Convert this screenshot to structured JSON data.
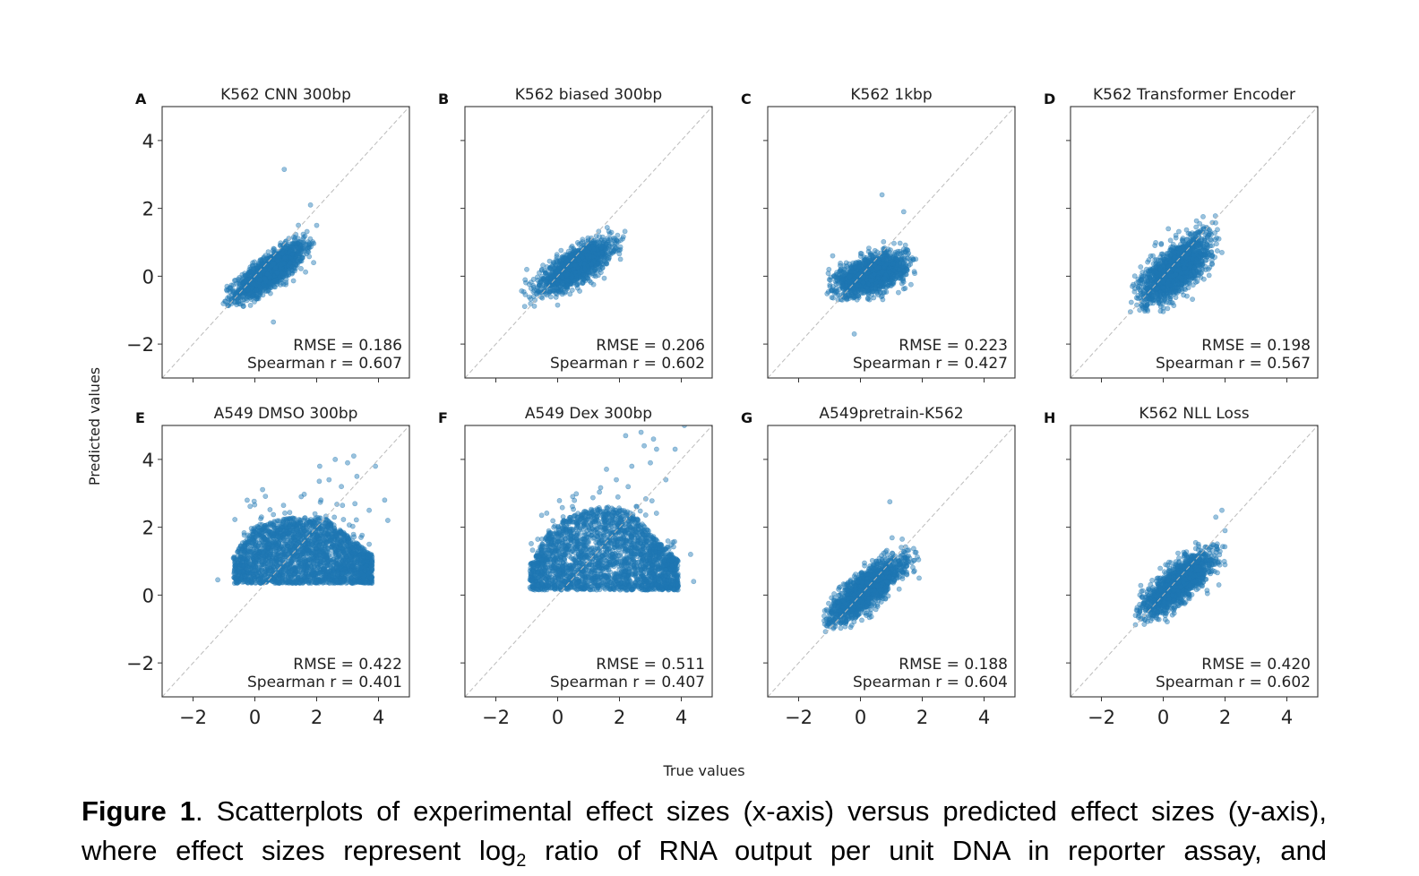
{
  "figure": {
    "xlabel": "True values",
    "ylabel": "Predicted values"
  },
  "caption": {
    "label": "Figure 1",
    "line1": ". Scatterplots of experimental effect sizes (x-axis) versus predicted effect sizes (y-axis),",
    "line2_a": "where effect sizes represent log",
    "line2_sub": "2",
    "line2_b": " ratio of RNA output per unit DNA in reporter assay, and"
  },
  "style": {
    "point_color": "#1f77b4",
    "diagonal_color": "#bbbbbb"
  },
  "chart_data": [
    {
      "type": "scatter",
      "letter": "A",
      "title": "K562 CNN 300bp",
      "xlim": [
        -3,
        5
      ],
      "ylim": [
        -3,
        5
      ],
      "xticks": [
        -2,
        0,
        2,
        4
      ],
      "yticks": [
        -2,
        0,
        2,
        4
      ],
      "rmse": "RMSE = 0.186",
      "spearman": "Spearman r = 0.607",
      "cloud": {
        "shape": "ellipse",
        "center": [
          0.5,
          0.15
        ],
        "sx": 0.55,
        "sy": 0.4,
        "rho": 0.8,
        "x_range": [
          -1.1,
          2.0
        ],
        "y_range": [
          -0.9,
          1.6
        ]
      },
      "outliers": [
        [
          0.95,
          3.15
        ],
        [
          0.6,
          -1.35
        ],
        [
          1.8,
          2.1
        ],
        [
          1.9,
          0.4
        ],
        [
          2.0,
          1.5
        ],
        [
          -0.9,
          -0.3
        ]
      ]
    },
    {
      "type": "scatter",
      "letter": "B",
      "title": "K562 biased 300bp",
      "xlim": [
        -3,
        5
      ],
      "ylim": [
        -3,
        5
      ],
      "xticks": [
        -2,
        0,
        2,
        4
      ],
      "yticks": [
        -2,
        0,
        2,
        4
      ],
      "rmse": "RMSE = 0.206",
      "spearman": "Spearman r = 0.602",
      "cloud": {
        "shape": "ellipse",
        "center": [
          0.6,
          0.3
        ],
        "sx": 0.55,
        "sy": 0.35,
        "rho": 0.75,
        "x_range": [
          -1.2,
          2.2
        ],
        "y_range": [
          -0.9,
          1.5
        ]
      },
      "outliers": [
        [
          0.0,
          -0.85
        ],
        [
          2.1,
          1.1
        ],
        [
          -1.0,
          0.2
        ]
      ]
    },
    {
      "type": "scatter",
      "letter": "C",
      "title": "K562 1kbp",
      "xlim": [
        -3,
        5
      ],
      "ylim": [
        -3,
        5
      ],
      "xticks": [
        -2,
        0,
        2,
        4
      ],
      "yticks": [
        -2,
        0,
        2,
        4
      ],
      "rmse": "RMSE = 0.223",
      "spearman": "Spearman r = 0.427",
      "cloud": {
        "shape": "ellipse",
        "center": [
          0.35,
          0.05
        ],
        "sx": 0.55,
        "sy": 0.3,
        "rho": 0.5,
        "x_range": [
          -1.1,
          1.8
        ],
        "y_range": [
          -0.7,
          1.6
        ]
      },
      "outliers": [
        [
          0.7,
          2.4
        ],
        [
          -0.2,
          -1.7
        ],
        [
          1.4,
          1.9
        ],
        [
          1.6,
          0.5
        ],
        [
          -0.9,
          0.6
        ]
      ]
    },
    {
      "type": "scatter",
      "letter": "D",
      "title": "K562 Transformer Encoder",
      "xlim": [
        -3,
        5
      ],
      "ylim": [
        -3,
        5
      ],
      "xticks": [
        -2,
        0,
        2,
        4
      ],
      "yticks": [
        -2,
        0,
        2,
        4
      ],
      "rmse": "RMSE = 0.198",
      "spearman": "Spearman r = 0.567",
      "cloud": {
        "shape": "ellipse",
        "center": [
          0.4,
          0.2
        ],
        "sx": 0.55,
        "sy": 0.5,
        "rho": 0.7,
        "x_range": [
          -1.1,
          1.8
        ],
        "y_range": [
          -1.1,
          1.9
        ]
      },
      "outliers": [
        [
          1.9,
          0.7
        ],
        [
          1.8,
          1.1
        ],
        [
          -1.0,
          -0.3
        ]
      ]
    },
    {
      "type": "scatter",
      "letter": "E",
      "title": "A549 DMSO 300bp",
      "xlim": [
        -3,
        5
      ],
      "ylim": [
        -3,
        5
      ],
      "xticks": [
        -2,
        0,
        2,
        4
      ],
      "yticks": [
        -2,
        0,
        2,
        4
      ],
      "rmse": "RMSE = 0.422",
      "spearman": "Spearman r = 0.401",
      "cloud": {
        "shape": "wedge",
        "x_range": [
          -0.7,
          3.8
        ],
        "floor": 0.35,
        "top_left": 1.5,
        "top_right": 2.3
      },
      "outliers": [
        [
          2.1,
          3.8
        ],
        [
          2.6,
          4.0
        ],
        [
          3.0,
          3.9
        ],
        [
          2.8,
          3.2
        ],
        [
          3.3,
          3.5
        ],
        [
          3.9,
          3.8
        ],
        [
          4.2,
          2.8
        ],
        [
          4.3,
          2.2
        ],
        [
          3.7,
          2.5
        ],
        [
          1.5,
          2.9
        ],
        [
          2.4,
          3.4
        ],
        [
          -1.2,
          0.45
        ],
        [
          3.2,
          4.1
        ]
      ]
    },
    {
      "type": "scatter",
      "letter": "F",
      "title": "A549 Dex 300bp",
      "xlim": [
        -3,
        5
      ],
      "ylim": [
        -3,
        5
      ],
      "xticks": [
        -2,
        0,
        2,
        4
      ],
      "yticks": [
        -2,
        0,
        2,
        4
      ],
      "rmse": "RMSE = 0.511",
      "spearman": "Spearman r = 0.407",
      "cloud": {
        "shape": "wedge",
        "x_range": [
          -0.9,
          3.9
        ],
        "floor": 0.15,
        "top_left": 1.0,
        "top_right": 2.6
      },
      "outliers": [
        [
          2.2,
          4.7
        ],
        [
          2.7,
          4.8
        ],
        [
          3.2,
          4.3
        ],
        [
          3.1,
          4.6
        ],
        [
          4.1,
          5.0
        ],
        [
          2.4,
          3.8
        ],
        [
          3.5,
          3.4
        ],
        [
          3.0,
          3.9
        ],
        [
          3.8,
          4.3
        ],
        [
          4.3,
          1.2
        ],
        [
          4.4,
          0.4
        ],
        [
          1.9,
          3.4
        ],
        [
          2.8,
          4.4
        ]
      ]
    },
    {
      "type": "scatter",
      "letter": "G",
      "title": "A549pretrain-K562",
      "xlim": [
        -3,
        5
      ],
      "ylim": [
        -3,
        5
      ],
      "xticks": [
        -2,
        0,
        2,
        4
      ],
      "yticks": [
        -2,
        0,
        2,
        4
      ],
      "rmse": "RMSE = 0.188",
      "spearman": "Spearman r = 0.604",
      "cloud": {
        "shape": "ellipse",
        "center": [
          0.2,
          0.15
        ],
        "sx": 0.6,
        "sy": 0.5,
        "rho": 0.82,
        "x_range": [
          -1.2,
          1.9
        ],
        "y_range": [
          -1.1,
          1.8
        ]
      },
      "outliers": [
        [
          0.95,
          2.75
        ],
        [
          1.9,
          0.5
        ],
        [
          -1.1,
          -0.9
        ]
      ]
    },
    {
      "type": "scatter",
      "letter": "H",
      "title": "K562 NLL Loss",
      "xlim": [
        -3,
        5
      ],
      "ylim": [
        -3,
        5
      ],
      "xticks": [
        -2,
        0,
        2,
        4
      ],
      "yticks": [
        -2,
        0,
        2,
        4
      ],
      "rmse": "RMSE = 0.420",
      "spearman": "Spearman r = 0.602",
      "cloud": {
        "shape": "ellipse",
        "center": [
          0.5,
          0.35
        ],
        "sx": 0.55,
        "sy": 0.45,
        "rho": 0.78,
        "x_range": [
          -0.9,
          2.0
        ],
        "y_range": [
          -0.9,
          1.6
        ]
      },
      "outliers": [
        [
          1.9,
          2.5
        ],
        [
          1.7,
          2.3
        ],
        [
          2.0,
          1.9
        ],
        [
          1.8,
          0.3
        ],
        [
          -0.9,
          -0.6
        ]
      ]
    }
  ]
}
